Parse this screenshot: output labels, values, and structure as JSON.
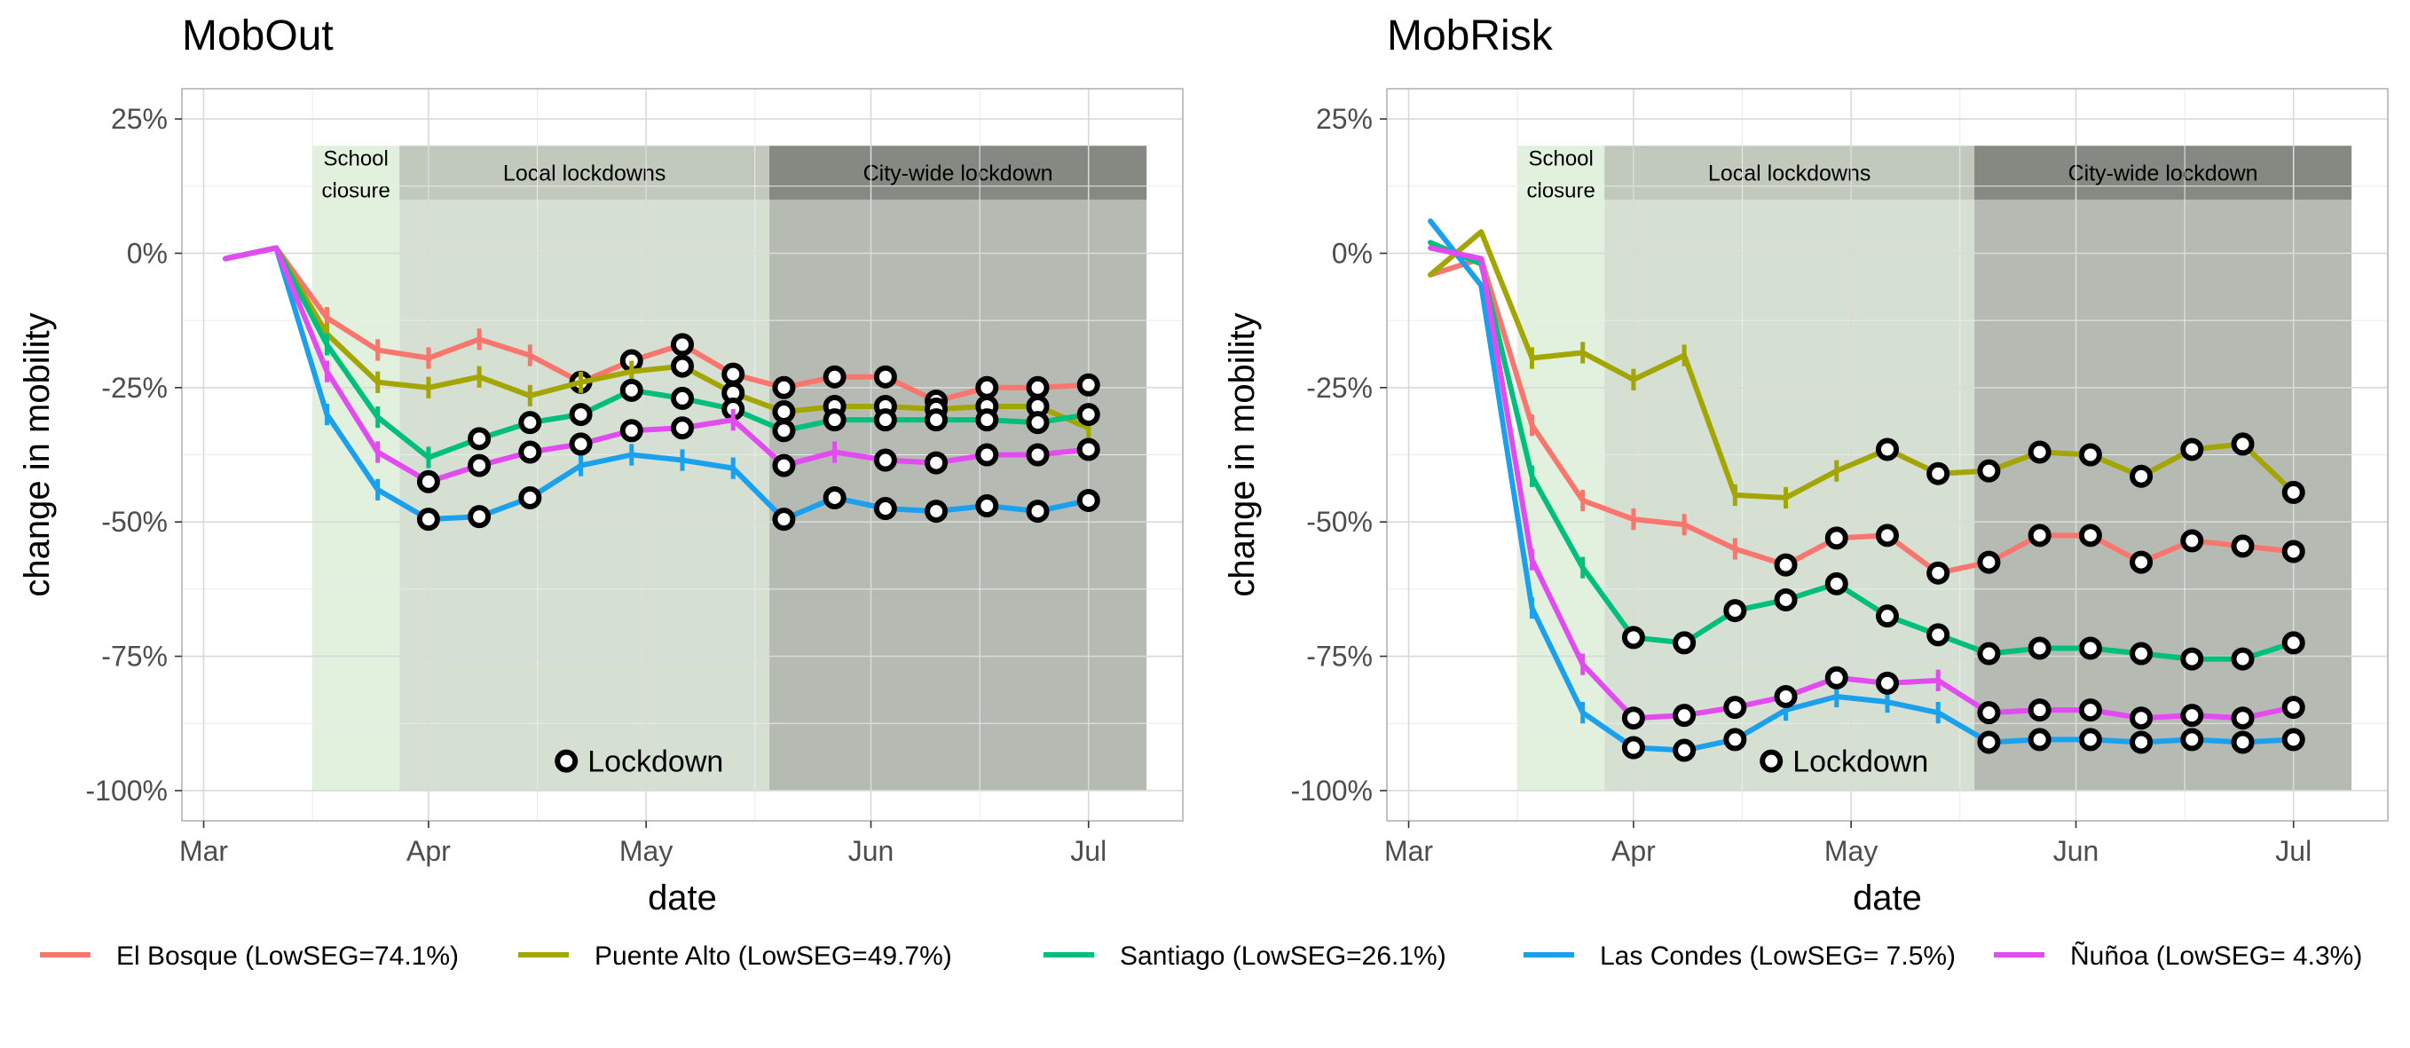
{
  "legend": {
    "position": "bottom",
    "items": [
      {
        "label": "El Bosque (LowSEG=74.1%)",
        "color": "#F8766D"
      },
      {
        "label": "Puente Alto (LowSEG=49.7%)",
        "color": "#A3A500"
      },
      {
        "label": "Santiago (LowSEG=26.1%)",
        "color": "#00BF7D"
      },
      {
        "label": "Las Condes (LowSEG= 7.5%)",
        "color": "#1AA0EC"
      },
      {
        "label": "Ñuñoa (LowSEG= 4.3%)",
        "color": "#E14BEF"
      }
    ]
  },
  "chart_data": [
    {
      "type": "line",
      "title": "MobOut",
      "xlabel": "date",
      "ylabel": "change in mobility",
      "ylim": [
        -100,
        25
      ],
      "yticks": [
        "25%",
        "0%",
        "-25%",
        "-50%",
        "-75%",
        "-100%"
      ],
      "xlim": [
        "2020-02-27",
        "2020-07-14"
      ],
      "xticks": [
        {
          "date": "2020-03-01",
          "label": "Mar"
        },
        {
          "date": "2020-04-01",
          "label": "Apr"
        },
        {
          "date": "2020-05-01",
          "label": "May"
        },
        {
          "date": "2020-06-01",
          "label": "Jun"
        },
        {
          "date": "2020-07-01",
          "label": "Jul"
        }
      ],
      "grid": true,
      "phases": [
        {
          "label_lines": [
            "School",
            "closure"
          ],
          "start": "2020-03-16",
          "end": "2020-03-28",
          "color": "#e2f1de",
          "header_color": "#e2f1de"
        },
        {
          "label_lines": [
            "Local lockdowns"
          ],
          "start": "2020-03-28",
          "end": "2020-05-18",
          "color": "#d5e0d3",
          "header_color": "#c0c9bc"
        },
        {
          "label_lines": [
            "City-wide lockdown"
          ],
          "start": "2020-05-18",
          "end": "2020-07-09",
          "color": "#b5bbb2",
          "header_color": "#858982"
        }
      ],
      "annotation": "Lockdown",
      "dates": [
        "2020-03-04",
        "2020-03-11",
        "2020-03-18",
        "2020-03-25",
        "2020-04-01",
        "2020-04-08",
        "2020-04-15",
        "2020-04-22",
        "2020-04-29",
        "2020-05-06",
        "2020-05-13",
        "2020-05-20",
        "2020-05-27",
        "2020-06-03",
        "2020-06-10",
        "2020-06-17",
        "2020-06-24",
        "2020-07-01"
      ],
      "series": [
        {
          "name": "El Bosque (LowSEG=74.1%)",
          "color": "#F8766D",
          "values": [
            -1,
            1,
            -12,
            -18,
            -19.5,
            -16,
            -19,
            -24,
            -20,
            -17,
            -22.5,
            -25,
            -23,
            -23,
            -27.5,
            -25,
            -25,
            -24.5
          ],
          "lockdown": [
            false,
            false,
            false,
            false,
            false,
            false,
            false,
            true,
            true,
            true,
            true,
            true,
            true,
            true,
            true,
            true,
            true,
            true
          ]
        },
        {
          "name": "Puente Alto (LowSEG=49.7%)",
          "color": "#A3A500",
          "values": [
            -1,
            1,
            -15,
            -24,
            -25,
            -23,
            -26.5,
            -24,
            -22,
            -21,
            -26,
            -29.5,
            -28.5,
            -28.5,
            -29,
            -28.5,
            -28.5,
            -32.5
          ],
          "lockdown": [
            false,
            false,
            false,
            false,
            false,
            false,
            false,
            false,
            false,
            true,
            true,
            true,
            true,
            true,
            true,
            true,
            true,
            false
          ]
        },
        {
          "name": "Santiago (LowSEG=26.1%)",
          "color": "#00BF7D",
          "values": [
            -1,
            1,
            -17,
            -30.5,
            -38,
            -34.5,
            -31.5,
            -30,
            -25.5,
            -27,
            -29,
            -33,
            -31,
            -31,
            -31,
            -31,
            -31.5,
            -30
          ],
          "lockdown": [
            false,
            false,
            false,
            false,
            false,
            true,
            true,
            true,
            true,
            true,
            true,
            true,
            true,
            true,
            true,
            true,
            true,
            true
          ]
        },
        {
          "name": "Las Condes (LowSEG= 7.5%)",
          "color": "#1AA0EC",
          "values": [
            -1,
            1,
            -30,
            -44,
            -49.5,
            -49,
            -45.5,
            -39.5,
            -37.5,
            -38.5,
            -40,
            -49.5,
            -45.5,
            -47.5,
            -48,
            -47,
            -48,
            -46
          ],
          "lockdown": [
            false,
            false,
            false,
            false,
            true,
            true,
            true,
            false,
            false,
            false,
            false,
            true,
            true,
            true,
            true,
            true,
            true,
            true
          ]
        },
        {
          "name": "Ñuñoa (LowSEG= 4.3%)",
          "color": "#E14BEF",
          "values": [
            -1,
            1,
            -22,
            -37,
            -42.5,
            -39.5,
            -37,
            -35.5,
            -33,
            -32.5,
            -31,
            -39.5,
            -37,
            -38.5,
            -39,
            -37.5,
            -37.5,
            -36.5
          ],
          "lockdown": [
            false,
            false,
            false,
            false,
            true,
            true,
            true,
            true,
            true,
            true,
            false,
            true,
            false,
            true,
            true,
            true,
            true,
            true
          ]
        }
      ]
    },
    {
      "type": "line",
      "title": "MobRisk",
      "xlabel": "date",
      "ylabel": "change in mobility",
      "ylim": [
        -100,
        25
      ],
      "yticks": [
        "25%",
        "0%",
        "-25%",
        "-50%",
        "-75%",
        "-100%"
      ],
      "xlim": [
        "2020-02-27",
        "2020-07-14"
      ],
      "xticks": [
        {
          "date": "2020-03-01",
          "label": "Mar"
        },
        {
          "date": "2020-04-01",
          "label": "Apr"
        },
        {
          "date": "2020-05-01",
          "label": "May"
        },
        {
          "date": "2020-06-01",
          "label": "Jun"
        },
        {
          "date": "2020-07-01",
          "label": "Jul"
        }
      ],
      "grid": true,
      "phases": [
        {
          "label_lines": [
            "School",
            "closure"
          ],
          "start": "2020-03-16",
          "end": "2020-03-28",
          "color": "#e2f1de",
          "header_color": "#e2f1de"
        },
        {
          "label_lines": [
            "Local lockdowns"
          ],
          "start": "2020-03-28",
          "end": "2020-05-18",
          "color": "#d5e0d3",
          "header_color": "#c0c9bc"
        },
        {
          "label_lines": [
            "City-wide lockdown"
          ],
          "start": "2020-05-18",
          "end": "2020-07-09",
          "color": "#b5bbb2",
          "header_color": "#858982"
        }
      ],
      "annotation": "Lockdown",
      "dates": [
        "2020-03-04",
        "2020-03-11",
        "2020-03-18",
        "2020-03-25",
        "2020-04-01",
        "2020-04-08",
        "2020-04-15",
        "2020-04-22",
        "2020-04-29",
        "2020-05-06",
        "2020-05-13",
        "2020-05-20",
        "2020-05-27",
        "2020-06-03",
        "2020-06-10",
        "2020-06-17",
        "2020-06-24",
        "2020-07-01"
      ],
      "series": [
        {
          "name": "El Bosque (LowSEG=74.1%)",
          "color": "#F8766D",
          "values": [
            -4,
            -1,
            -32,
            -46,
            -49.5,
            -50.5,
            -55,
            -58,
            -53,
            -52.5,
            -59.5,
            -57.5,
            -52.5,
            -52.5,
            -57.5,
            -53.5,
            -54.5,
            -55.5
          ],
          "lockdown": [
            false,
            false,
            false,
            false,
            false,
            false,
            false,
            true,
            true,
            true,
            true,
            true,
            true,
            true,
            true,
            true,
            true,
            true
          ]
        },
        {
          "name": "Puente Alto (LowSEG=49.7%)",
          "color": "#A3A500",
          "values": [
            -4,
            4,
            -19.5,
            -18.5,
            -23.5,
            -19,
            -45,
            -45.5,
            -40.5,
            -36.5,
            -41,
            -40.5,
            -37,
            -37.5,
            -41.5,
            -36.5,
            -35.5,
            -44.5
          ],
          "lockdown": [
            false,
            false,
            false,
            false,
            false,
            false,
            false,
            false,
            false,
            true,
            true,
            true,
            true,
            true,
            true,
            true,
            true,
            true
          ]
        },
        {
          "name": "Santiago (LowSEG=26.1%)",
          "color": "#00BF7D",
          "values": [
            2,
            -2,
            -41.5,
            -58.5,
            -71.5,
            -72.5,
            -66.5,
            -64.5,
            -61.5,
            -67.5,
            -71,
            -74.5,
            -73.5,
            -73.5,
            -74.5,
            -75.5,
            -75.5,
            -72.5
          ],
          "lockdown": [
            false,
            false,
            false,
            false,
            true,
            true,
            true,
            true,
            true,
            true,
            true,
            true,
            true,
            true,
            true,
            true,
            true,
            true
          ]
        },
        {
          "name": "Las Condes (LowSEG= 7.5%)",
          "color": "#1AA0EC",
          "values": [
            6,
            -6,
            -66,
            -85.5,
            -92,
            -92.5,
            -90.5,
            -85,
            -82.5,
            -83.5,
            -85.5,
            -91,
            -90.5,
            -90.5,
            -91,
            -90.5,
            -91,
            -90.5
          ],
          "lockdown": [
            false,
            false,
            false,
            false,
            true,
            true,
            true,
            false,
            false,
            false,
            false,
            true,
            true,
            true,
            true,
            true,
            true,
            true
          ]
        },
        {
          "name": "Ñuñoa (LowSEG= 4.3%)",
          "color": "#E14BEF",
          "values": [
            1,
            -1,
            -57,
            -76.5,
            -86.5,
            -86,
            -84.5,
            -82.5,
            -79,
            -80,
            -79.5,
            -85.5,
            -85,
            -85,
            -86.5,
            -86,
            -86.5,
            -84.5
          ],
          "lockdown": [
            false,
            false,
            false,
            false,
            true,
            true,
            true,
            true,
            true,
            true,
            false,
            true,
            true,
            true,
            true,
            true,
            true,
            true
          ]
        }
      ]
    }
  ]
}
